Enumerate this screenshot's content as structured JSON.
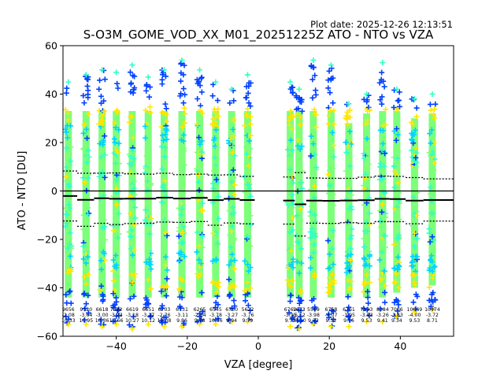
{
  "chart_data": {
    "type": "scatter",
    "title": "S-O3M_GOME_VOD_XX_M01_20251225Z ATO - NTO vs VZA",
    "plot_date": "Plot date: 2025-12-26 12:13:51",
    "xlabel": "VZA [degree]",
    "ylabel": "ATO - NTO [DU]",
    "xlim": [
      -55,
      55
    ],
    "ylim": [
      -60,
      60
    ],
    "x_ticks": [
      -40,
      -20,
      0,
      20,
      40
    ],
    "y_ticks": [
      -60,
      -40,
      -20,
      0,
      20,
      40,
      60
    ],
    "x_tick_labels": [
      "−40",
      "−20",
      "0",
      "20",
      "40"
    ],
    "y_tick_labels": [
      "−60",
      "−40",
      "−20",
      "0",
      "20",
      "40",
      "60"
    ],
    "bins": [
      {
        "vza": -53.5,
        "count": "9656",
        "mean": "-2.08",
        "std": "10.33",
        "mean_val": -2.08,
        "std_val": 10.33,
        "top": 45,
        "bottom": -55
      },
      {
        "vza": -48.5,
        "count": "9520",
        "mean": "-3.64",
        "std": "10.95",
        "mean_val": -3.64,
        "std_val": 10.95,
        "top": 48,
        "bottom": -55
      },
      {
        "vza": -44.0,
        "count": "6618",
        "mean": "-3.00",
        "std": "10.36",
        "mean_val": -3.0,
        "std_val": 10.36,
        "top": 50,
        "bottom": -56
      },
      {
        "vza": -40.0,
        "count": "7322",
        "mean": "-3.23",
        "std": "10.66",
        "mean_val": -3.23,
        "std_val": 10.66,
        "top": 49,
        "bottom": -55
      },
      {
        "vza": -35.5,
        "count": "6619",
        "mean": "-3.18",
        "std": "10.27",
        "mean_val": -3.18,
        "std_val": 10.27,
        "top": 52,
        "bottom": -57
      },
      {
        "vza": -31.0,
        "count": "6651",
        "mean": "-3.17",
        "std": "10.12",
        "mean_val": -3.17,
        "std_val": 10.12,
        "top": 47,
        "bottom": -55
      },
      {
        "vza": -26.5,
        "count": "6703",
        "mean": "-2.76",
        "std": "10.08",
        "mean_val": -2.76,
        "std_val": 10.08,
        "top": 50,
        "bottom": -56
      },
      {
        "vza": -21.5,
        "count": "6731",
        "mean": "-3.11",
        "std": "9.86",
        "mean_val": -3.11,
        "std_val": 9.86,
        "top": 54,
        "bottom": -56
      },
      {
        "vza": -16.5,
        "count": "6265",
        "mean": "-2.84",
        "std": "9.78",
        "mean_val": -2.84,
        "std_val": 9.78,
        "top": 50,
        "bottom": -55
      },
      {
        "vza": -12.0,
        "count": "6545",
        "mean": "-3.78",
        "std": "10.36",
        "mean_val": -3.78,
        "std_val": 10.36,
        "top": 45,
        "bottom": -55
      },
      {
        "vza": -7.5,
        "count": "6760",
        "mean": "-3.27",
        "std": "9.94",
        "mean_val": -3.27,
        "std_val": 9.94,
        "top": 42,
        "bottom": -54
      },
      {
        "vza": -3.0,
        "count": "5622",
        "mean": "-3.76",
        "std": "9.79",
        "mean_val": -3.76,
        "std_val": 9.79,
        "top": 48,
        "bottom": -54
      },
      {
        "vza": 9.0,
        "count": "6762",
        "mean": "-3.95",
        "std": "9.73",
        "mean_val": -3.95,
        "std_val": 9.73,
        "top": 45,
        "bottom": -56
      },
      {
        "vza": 11.5,
        "count": "5673",
        "mean": "-5.52",
        "std": "13.10",
        "mean_val": -5.52,
        "std_val": 13.1,
        "top": 42,
        "bottom": -57
      },
      {
        "vza": 15.5,
        "count": "5569",
        "mean": "-3.98",
        "std": "9.32",
        "mean_val": -3.98,
        "std_val": 9.32,
        "top": 54,
        "bottom": -55
      },
      {
        "vza": 20.5,
        "count": "6758",
        "mean": "-4.07",
        "std": "9.32",
        "mean_val": -4.07,
        "std_val": 9.32,
        "top": 52,
        "bottom": -56
      },
      {
        "vza": 25.5,
        "count": "6761",
        "mean": "-3.95",
        "std": "9.16",
        "mean_val": -3.95,
        "std_val": 9.16,
        "top": 36,
        "bottom": -56
      },
      {
        "vza": 30.5,
        "count": "7133",
        "mean": "-3.83",
        "std": "9.53",
        "mean_val": -3.83,
        "std_val": 9.53,
        "top": 40,
        "bottom": -54
      },
      {
        "vza": 35.0,
        "count": "8384",
        "mean": "-3.26",
        "std": "9.41",
        "mean_val": -3.26,
        "std_val": 9.41,
        "top": 53,
        "bottom": -54
      },
      {
        "vza": 39.0,
        "count": "7006",
        "mean": "-3.33",
        "std": "9.34",
        "mean_val": -3.33,
        "std_val": 9.34,
        "top": 42,
        "bottom": -52
      },
      {
        "vza": 44.0,
        "count": "10669",
        "mean": "-4.00",
        "std": "9.53",
        "mean_val": -4.0,
        "std_val": 9.53,
        "top": 38,
        "bottom": -50
      },
      {
        "vza": 49.0,
        "count": "10474",
        "mean": "-3.72",
        "std": "8.71",
        "mean_val": -3.72,
        "std_val": 8.71,
        "top": 40,
        "bottom": -49
      }
    ],
    "colors": {
      "core": "#7cff79",
      "inner": "#30ffc6",
      "mid": "#00d4ff",
      "outer": "#ffe600",
      "far": "#0040ff",
      "mean_line": "#000000",
      "std_line": "#000000"
    }
  }
}
